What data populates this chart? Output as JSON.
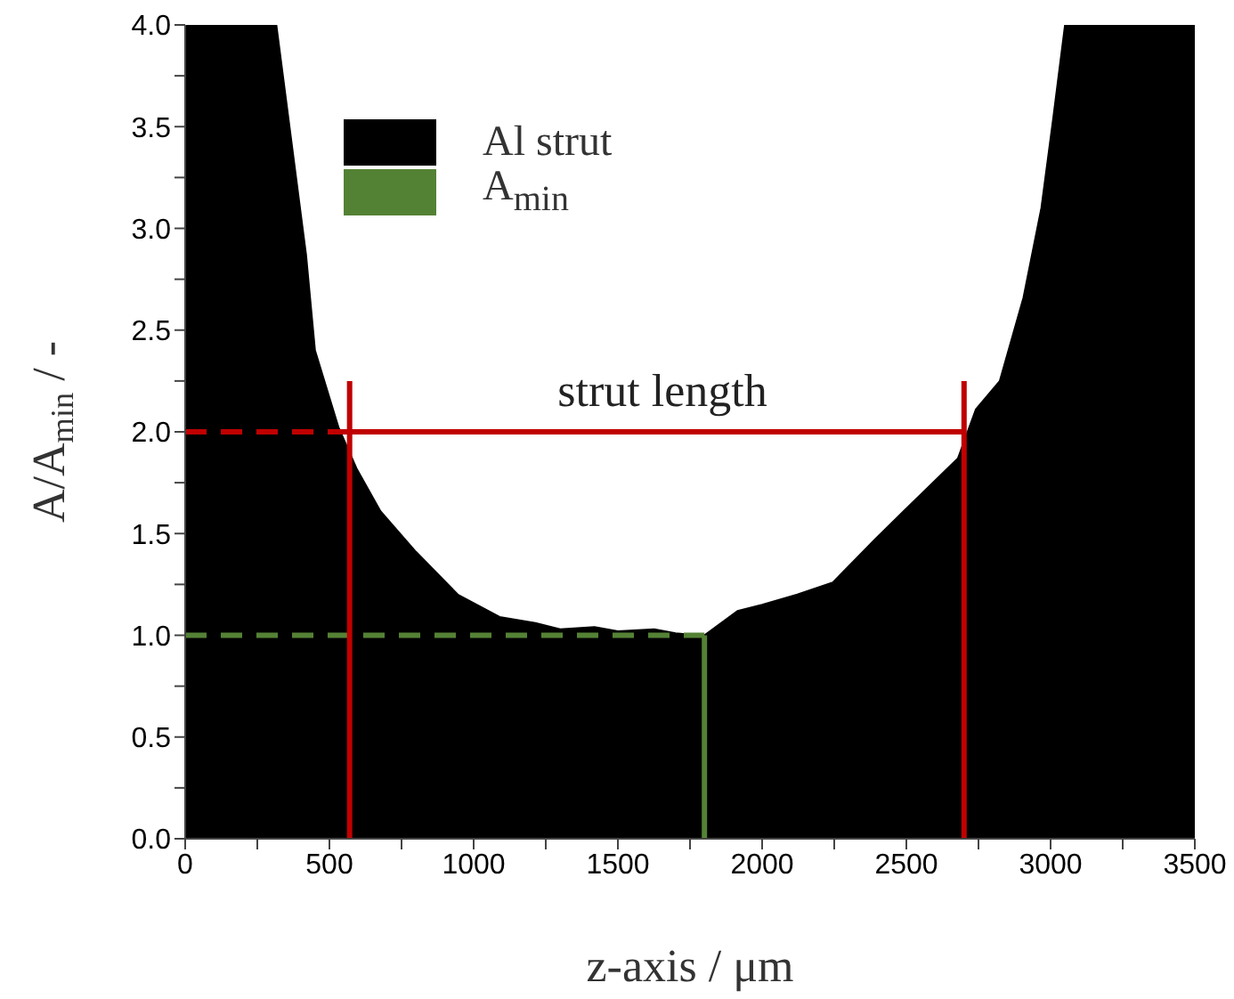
{
  "chart_data": {
    "type": "area",
    "xlabel": "z-axis / μm",
    "ylabel": "A/A$_{min}$ / -",
    "xlim": [
      0,
      3500
    ],
    "xticks": [
      0,
      {
        "value": 250,
        "label": null
      },
      500,
      {
        "value": 750,
        "label": null
      },
      1000,
      {
        "value": 1250,
        "label": null
      },
      1500,
      {
        "value": 1750,
        "label": null
      },
      2000,
      {
        "value": 2250,
        "label": null
      },
      2500,
      {
        "value": 2750,
        "label": null
      },
      3000,
      {
        "value": 3250,
        "label": null
      },
      3500
    ],
    "ylim": [
      0,
      4.0
    ],
    "yticks": [
      {
        "value": 0,
        "label": "0.0"
      },
      {
        "value": 0.25,
        "label": null
      },
      0.5,
      {
        "value": 0.75,
        "label": null
      },
      {
        "value": 1,
        "label": "1.0"
      },
      {
        "value": 1.25,
        "label": null
      },
      1.5,
      {
        "value": 1.75,
        "label": null
      },
      {
        "value": 2,
        "label": "2.0"
      },
      {
        "value": 2.25,
        "label": null
      },
      2.5,
      {
        "value": 2.75,
        "label": null
      },
      {
        "value": 3,
        "label": "3.0"
      },
      {
        "value": 3.25,
        "label": null
      },
      3.5,
      {
        "value": 3.75,
        "label": null
      },
      {
        "value": 4,
        "label": "4.0"
      }
    ],
    "legend": "top left",
    "annotations": [
      "strut length"
    ],
    "series": [
      {
        "name": "Al strut",
        "color": "#000000",
        "x": [
          0,
          316,
          419,
          450,
          532,
          594,
          677,
          800,
          945,
          1090,
          1214,
          1300,
          1419,
          1500,
          1626,
          1700,
          1771,
          1800,
          1915,
          2000,
          2122,
          2245,
          2390,
          2534,
          2679,
          2741,
          2824,
          2906,
          2968,
          3009,
          3050,
          3500
        ],
        "values": [
          4.0,
          4.0,
          2.87,
          2.4,
          2.02,
          1.82,
          1.61,
          1.41,
          1.2,
          1.09,
          1.06,
          1.03,
          1.04,
          1.02,
          1.03,
          1.01,
          1.0,
          1.0,
          1.12,
          1.15,
          1.2,
          1.26,
          1.47,
          1.67,
          1.87,
          2.11,
          2.25,
          2.66,
          3.1,
          3.54,
          4.0,
          4.0
        ]
      },
      {
        "name": "A$_{min}$",
        "type": "line",
        "color": "#548235",
        "line_style": "dashed",
        "x": [
          0,
          1800
        ],
        "values": [
          1.0,
          1.0
        ]
      },
      {
        "type": "line",
        "color": "#548235",
        "line_style": "solid",
        "x": [
          1800,
          1800
        ],
        "values": [
          1.0,
          0
        ]
      },
      {
        "type": "line",
        "color": "#c00000",
        "line_style": "dashed",
        "x": [
          0,
          570
        ],
        "values": [
          2.0,
          2.0
        ]
      },
      {
        "type": "line",
        "color": "#c00000",
        "line_style": "solid",
        "x": [
          570,
          2700
        ],
        "values": [
          2.0,
          2.0
        ]
      },
      {
        "type": "line",
        "color": "#c00000",
        "line_style": "solid",
        "x": [
          570,
          570
        ],
        "values": [
          0,
          2.25
        ]
      },
      {
        "type": "line",
        "color": "#c00000",
        "line_style": "solid",
        "x": [
          2700,
          2700
        ],
        "values": [
          0,
          2.25
        ]
      }
    ]
  }
}
